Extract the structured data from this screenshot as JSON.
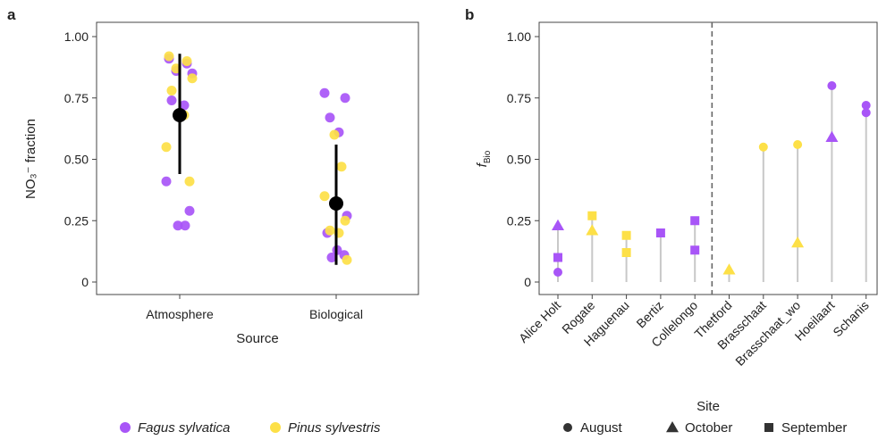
{
  "colors": {
    "fagus": "#a855f7",
    "pinus": "#fde047",
    "mean": "#000000",
    "stem": "#c8c8c8",
    "divider": "#666666",
    "shape_legend": "#333333"
  },
  "chart_data": [
    {
      "panel_label": "a",
      "type": "scatter",
      "xlabel": "Source",
      "ylabel": "NO₃⁻ fraction",
      "ylim": [
        0,
        1
      ],
      "yticks": [
        "0",
        "0.25",
        "0.50",
        "0.75",
        "1.00"
      ],
      "ytick_values": [
        0,
        0.25,
        0.5,
        0.75,
        1.0
      ],
      "grid": false,
      "categories": [
        "Atmosphere",
        "Biological"
      ],
      "means": [
        {
          "category": "Atmosphere",
          "mean": 0.68,
          "low": 0.44,
          "high": 0.93
        },
        {
          "category": "Biological",
          "mean": 0.32,
          "low": 0.07,
          "high": 0.56
        }
      ],
      "series": [
        {
          "name": "Fagus sylvatica",
          "color_key": "fagus",
          "points": [
            {
              "cat": "Atmosphere",
              "y": 0.91
            },
            {
              "cat": "Atmosphere",
              "y": 0.89
            },
            {
              "cat": "Atmosphere",
              "y": 0.86
            },
            {
              "cat": "Atmosphere",
              "y": 0.85
            },
            {
              "cat": "Atmosphere",
              "y": 0.74
            },
            {
              "cat": "Atmosphere",
              "y": 0.72
            },
            {
              "cat": "Atmosphere",
              "y": 0.41
            },
            {
              "cat": "Atmosphere",
              "y": 0.29
            },
            {
              "cat": "Atmosphere",
              "y": 0.23
            },
            {
              "cat": "Atmosphere",
              "y": 0.23
            },
            {
              "cat": "Biological",
              "y": 0.77
            },
            {
              "cat": "Biological",
              "y": 0.75
            },
            {
              "cat": "Biological",
              "y": 0.67
            },
            {
              "cat": "Biological",
              "y": 0.61
            },
            {
              "cat": "Biological",
              "y": 0.27
            },
            {
              "cat": "Biological",
              "y": 0.2
            },
            {
              "cat": "Biological",
              "y": 0.13
            },
            {
              "cat": "Biological",
              "y": 0.11
            },
            {
              "cat": "Biological",
              "y": 0.1
            }
          ]
        },
        {
          "name": "Pinus sylvestris",
          "color_key": "pinus",
          "points": [
            {
              "cat": "Atmosphere",
              "y": 0.92
            },
            {
              "cat": "Atmosphere",
              "y": 0.9
            },
            {
              "cat": "Atmosphere",
              "y": 0.87
            },
            {
              "cat": "Atmosphere",
              "y": 0.83
            },
            {
              "cat": "Atmosphere",
              "y": 0.78
            },
            {
              "cat": "Atmosphere",
              "y": 0.68
            },
            {
              "cat": "Atmosphere",
              "y": 0.55
            },
            {
              "cat": "Atmosphere",
              "y": 0.41
            },
            {
              "cat": "Biological",
              "y": 0.6
            },
            {
              "cat": "Biological",
              "y": 0.47
            },
            {
              "cat": "Biological",
              "y": 0.35
            },
            {
              "cat": "Biological",
              "y": 0.25
            },
            {
              "cat": "Biological",
              "y": 0.21
            },
            {
              "cat": "Biological",
              "y": 0.2
            },
            {
              "cat": "Biological",
              "y": 0.09
            }
          ]
        }
      ],
      "legend": [
        "Fagus sylvatica",
        "Pinus sylvestris"
      ],
      "legend_position": "bottom"
    },
    {
      "panel_label": "b",
      "type": "scatter",
      "xlabel": "Site",
      "ylabel_main": "f",
      "ylabel_sub": "Bio",
      "ylim": [
        0,
        1
      ],
      "yticks": [
        "0",
        "0.25",
        "0.50",
        "0.75",
        "1.00"
      ],
      "ytick_values": [
        0,
        0.25,
        0.5,
        0.75,
        1.0
      ],
      "grid": false,
      "categories": [
        "Alice Holt",
        "Rogate",
        "Haguenau",
        "Bertiz",
        "Collelongo",
        "Thetford",
        "Brasschaat",
        "Brasschaat_wo",
        "Hoeilaart",
        "Schanis"
      ],
      "divider_after_index": 4,
      "points": [
        {
          "site": "Alice Holt",
          "month": "October",
          "species": "fagus",
          "y": 0.23
        },
        {
          "site": "Alice Holt",
          "month": "September",
          "species": "fagus",
          "y": 0.1
        },
        {
          "site": "Alice Holt",
          "month": "August",
          "species": "fagus",
          "y": 0.04
        },
        {
          "site": "Rogate",
          "month": "September",
          "species": "pinus",
          "y": 0.27
        },
        {
          "site": "Rogate",
          "month": "October",
          "species": "pinus",
          "y": 0.21
        },
        {
          "site": "Haguenau",
          "month": "September",
          "species": "pinus",
          "y": 0.19
        },
        {
          "site": "Haguenau",
          "month": "September",
          "species": "pinus",
          "y": 0.12
        },
        {
          "site": "Bertiz",
          "month": "September",
          "species": "fagus",
          "y": 0.2
        },
        {
          "site": "Collelongo",
          "month": "September",
          "species": "fagus",
          "y": 0.25
        },
        {
          "site": "Collelongo",
          "month": "September",
          "species": "fagus",
          "y": 0.13
        },
        {
          "site": "Thetford",
          "month": "October",
          "species": "pinus",
          "y": 0.05
        },
        {
          "site": "Brasschaat",
          "month": "August",
          "species": "pinus",
          "y": 0.55
        },
        {
          "site": "Brasschaat_wo",
          "month": "August",
          "species": "pinus",
          "y": 0.56
        },
        {
          "site": "Brasschaat_wo",
          "month": "October",
          "species": "pinus",
          "y": 0.16
        },
        {
          "site": "Hoeilaart",
          "month": "August",
          "species": "fagus",
          "y": 0.8
        },
        {
          "site": "Hoeilaart",
          "month": "October",
          "species": "fagus",
          "y": 0.59
        },
        {
          "site": "Schanis",
          "month": "August",
          "species": "fagus",
          "y": 0.72
        },
        {
          "site": "Schanis",
          "month": "August",
          "species": "fagus",
          "y": 0.69
        }
      ],
      "shape_legend": [
        {
          "label": "August",
          "shape": "circle"
        },
        {
          "label": "October",
          "shape": "triangle"
        },
        {
          "label": "September",
          "shape": "square"
        }
      ],
      "legend_position": "bottom"
    }
  ]
}
